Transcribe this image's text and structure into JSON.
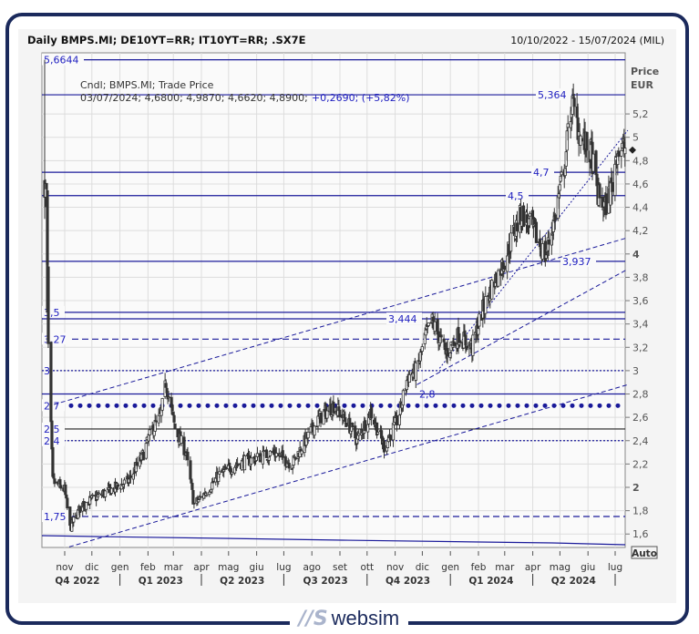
{
  "header": {
    "title": "Daily BMPS.MI; DE10YT=RR; IT10YT=RR; .SX7E",
    "date_range": "10/10/2022 - 15/07/2024 (MIL)"
  },
  "legend": {
    "line1": "Cndl; BMPS.MI; Trade Price",
    "ohlc": "03/07/2024; 4,6800; 4,9870; 4,6620; 4,8900;",
    "change": "+0,2690; (+5,82%)"
  },
  "auto_button": "Auto",
  "logo": {
    "mark": "//S",
    "text": "websim"
  },
  "colors": {
    "accent": "#1a1a9a",
    "candle": "#333333",
    "frame": "#1b2a5c"
  },
  "chart_data": {
    "type": "candlestick",
    "title": "Daily BMPS.MI; DE10YT=RR; IT10YT=RR; .SX7E",
    "ylabel": "Price EUR",
    "ylabel_lines": [
      "Price",
      "EUR"
    ],
    "ylim": [
      1.5,
      5.72
    ],
    "yticks": [
      "1,6",
      "1,8",
      "2",
      "2,2",
      "2,4",
      "2,6",
      "2,8",
      "3",
      "3,2",
      "3,4",
      "3,6",
      "3,8",
      "4",
      "4,2",
      "4,4",
      "4,6",
      "4,8",
      "5",
      "5,2"
    ],
    "ytick_values": [
      1.6,
      1.8,
      2,
      2.2,
      2.4,
      2.6,
      2.8,
      3,
      3.2,
      3.4,
      3.6,
      3.8,
      4,
      4.2,
      4.4,
      4.6,
      4.8,
      5,
      5.2
    ],
    "xlim": [
      "2022-10-10",
      "2024-07-15"
    ],
    "months": [
      {
        "label": "nov",
        "date": "2022-11-01"
      },
      {
        "label": "dic",
        "date": "2022-12-01"
      },
      {
        "label": "gen",
        "date": "2023-01-01"
      },
      {
        "label": "feb",
        "date": "2023-02-01"
      },
      {
        "label": "mar",
        "date": "2023-03-01"
      },
      {
        "label": "apr",
        "date": "2023-04-01"
      },
      {
        "label": "mag",
        "date": "2023-05-01"
      },
      {
        "label": "giu",
        "date": "2023-06-01"
      },
      {
        "label": "lug",
        "date": "2023-07-01"
      },
      {
        "label": "ago",
        "date": "2023-08-01"
      },
      {
        "label": "set",
        "date": "2023-09-01"
      },
      {
        "label": "ott",
        "date": "2023-10-01"
      },
      {
        "label": "nov",
        "date": "2023-11-01"
      },
      {
        "label": "dic",
        "date": "2023-12-01"
      },
      {
        "label": "gen",
        "date": "2024-01-01"
      },
      {
        "label": "feb",
        "date": "2024-02-01"
      },
      {
        "label": "mar",
        "date": "2024-03-01"
      },
      {
        "label": "apr",
        "date": "2024-04-01"
      },
      {
        "label": "mag",
        "date": "2024-05-01"
      },
      {
        "label": "giu",
        "date": "2024-06-01"
      },
      {
        "label": "lug",
        "date": "2024-07-01"
      }
    ],
    "quarters": [
      {
        "label": "Q4 2022",
        "date": "2022-11-15"
      },
      {
        "label": "Q1 2023",
        "date": "2023-02-15"
      },
      {
        "label": "Q2 2023",
        "date": "2023-05-16"
      },
      {
        "label": "Q3 2023",
        "date": "2023-08-16"
      },
      {
        "label": "Q4 2023",
        "date": "2023-11-15"
      },
      {
        "label": "Q1 2024",
        "date": "2024-02-15"
      },
      {
        "label": "Q2 2024",
        "date": "2024-05-16"
      }
    ],
    "quarter_bounds": [
      "2023-01-01",
      "2023-04-01",
      "2023-07-01",
      "2023-10-01",
      "2024-01-01",
      "2024-04-01",
      "2024-07-01"
    ],
    "approx_close": [
      [
        "2022-10-10",
        4.6
      ],
      [
        "2022-10-12",
        4.5
      ],
      [
        "2022-10-14",
        3.2
      ],
      [
        "2022-10-19",
        2.05
      ],
      [
        "2022-11-01",
        1.98
      ],
      [
        "2022-11-07",
        1.65
      ],
      [
        "2022-11-20",
        1.85
      ],
      [
        "2022-12-15",
        1.95
      ],
      [
        "2023-01-10",
        2.05
      ],
      [
        "2023-01-25",
        2.25
      ],
      [
        "2023-02-06",
        2.5
      ],
      [
        "2023-02-15",
        2.6
      ],
      [
        "2023-02-21",
        2.9
      ],
      [
        "2023-03-03",
        2.5
      ],
      [
        "2023-03-15",
        2.3
      ],
      [
        "2023-03-24",
        1.85
      ],
      [
        "2023-04-05",
        1.95
      ],
      [
        "2023-04-20",
        2.1
      ],
      [
        "2023-05-10",
        2.2
      ],
      [
        "2023-06-01",
        2.25
      ],
      [
        "2023-06-20",
        2.3
      ],
      [
        "2023-07-10",
        2.2
      ],
      [
        "2023-07-25",
        2.4
      ],
      [
        "2023-08-10",
        2.6
      ],
      [
        "2023-08-25",
        2.7
      ],
      [
        "2023-09-10",
        2.55
      ],
      [
        "2023-09-20",
        2.4
      ],
      [
        "2023-10-05",
        2.65
      ],
      [
        "2023-10-20",
        2.35
      ],
      [
        "2023-11-05",
        2.6
      ],
      [
        "2023-11-15",
        2.95
      ],
      [
        "2023-11-25",
        3.0
      ],
      [
        "2023-12-05",
        3.3
      ],
      [
        "2023-12-12",
        3.42
      ],
      [
        "2023-12-27",
        3.15
      ],
      [
        "2024-01-10",
        3.3
      ],
      [
        "2024-01-25",
        3.2
      ],
      [
        "2024-02-05",
        3.5
      ],
      [
        "2024-02-15",
        3.7
      ],
      [
        "2024-03-01",
        3.95
      ],
      [
        "2024-03-12",
        4.2
      ],
      [
        "2024-03-20",
        4.35
      ],
      [
        "2024-04-02",
        4.2
      ],
      [
        "2024-04-15",
        3.98
      ],
      [
        "2024-04-25",
        4.3
      ],
      [
        "2024-05-06",
        4.75
      ],
      [
        "2024-05-14",
        5.3
      ],
      [
        "2024-05-24",
        5.0
      ],
      [
        "2024-06-05",
        4.85
      ],
      [
        "2024-06-12",
        4.5
      ],
      [
        "2024-06-20",
        4.4
      ],
      [
        "2024-06-28",
        4.6
      ],
      [
        "2024-07-03",
        4.89
      ],
      [
        "2024-07-12",
        4.9
      ]
    ],
    "last_price": 4.89,
    "levels": [
      {
        "value": 5.6644,
        "label": "5,6644",
        "style": "solid",
        "label_pos": "left"
      },
      {
        "value": 5.364,
        "label": "5,364",
        "style": "solid",
        "label_pos": "right"
      },
      {
        "value": 4.7,
        "label": "4,7",
        "style": "solid",
        "label_pos": "right"
      },
      {
        "value": 4.5,
        "label": "4,5",
        "style": "solid",
        "label_pos": "right"
      },
      {
        "value": 3.937,
        "label": "3,937",
        "style": "solid",
        "label_pos": "right"
      },
      {
        "value": 3.5,
        "label": "3,5",
        "style": "solid",
        "label_pos": "left"
      },
      {
        "value": 3.444,
        "label": "3,444",
        "style": "solid",
        "label_pos": "mid"
      },
      {
        "value": 3.27,
        "label": "3,27",
        "style": "dashed",
        "label_pos": "left"
      },
      {
        "value": 3.0,
        "label": "3",
        "style": "dotted",
        "label_pos": "left"
      },
      {
        "value": 2.8,
        "label": "2,8",
        "style": "solid",
        "label_pos": "mid"
      },
      {
        "value": 2.7,
        "label": "2,7",
        "style": "bigdots",
        "label_pos": "left"
      },
      {
        "value": 2.5,
        "label": "2,5",
        "style": "solid",
        "label_pos": "left"
      },
      {
        "value": 2.4,
        "label": "2,4",
        "style": "dotted",
        "label_pos": "left"
      },
      {
        "value": 1.75,
        "label": "1,75",
        "style": "dashed",
        "label_pos": "left"
      }
    ],
    "trendlines": [
      {
        "from": [
          "2022-10-20",
          2.71
        ],
        "to": [
          "2024-07-15",
          4.14
        ],
        "style": "dashed"
      },
      {
        "from": [
          "2022-11-06",
          1.49
        ],
        "to": [
          "2024-07-15",
          2.88
        ],
        "style": "dashed"
      },
      {
        "from": [
          "2023-11-25",
          2.88
        ],
        "to": [
          "2024-07-15",
          3.87
        ],
        "style": "dashed"
      },
      {
        "from": [
          "2023-12-20",
          3.02
        ],
        "to": [
          "2024-07-15",
          5.06
        ],
        "style": "dotted"
      }
    ]
  }
}
